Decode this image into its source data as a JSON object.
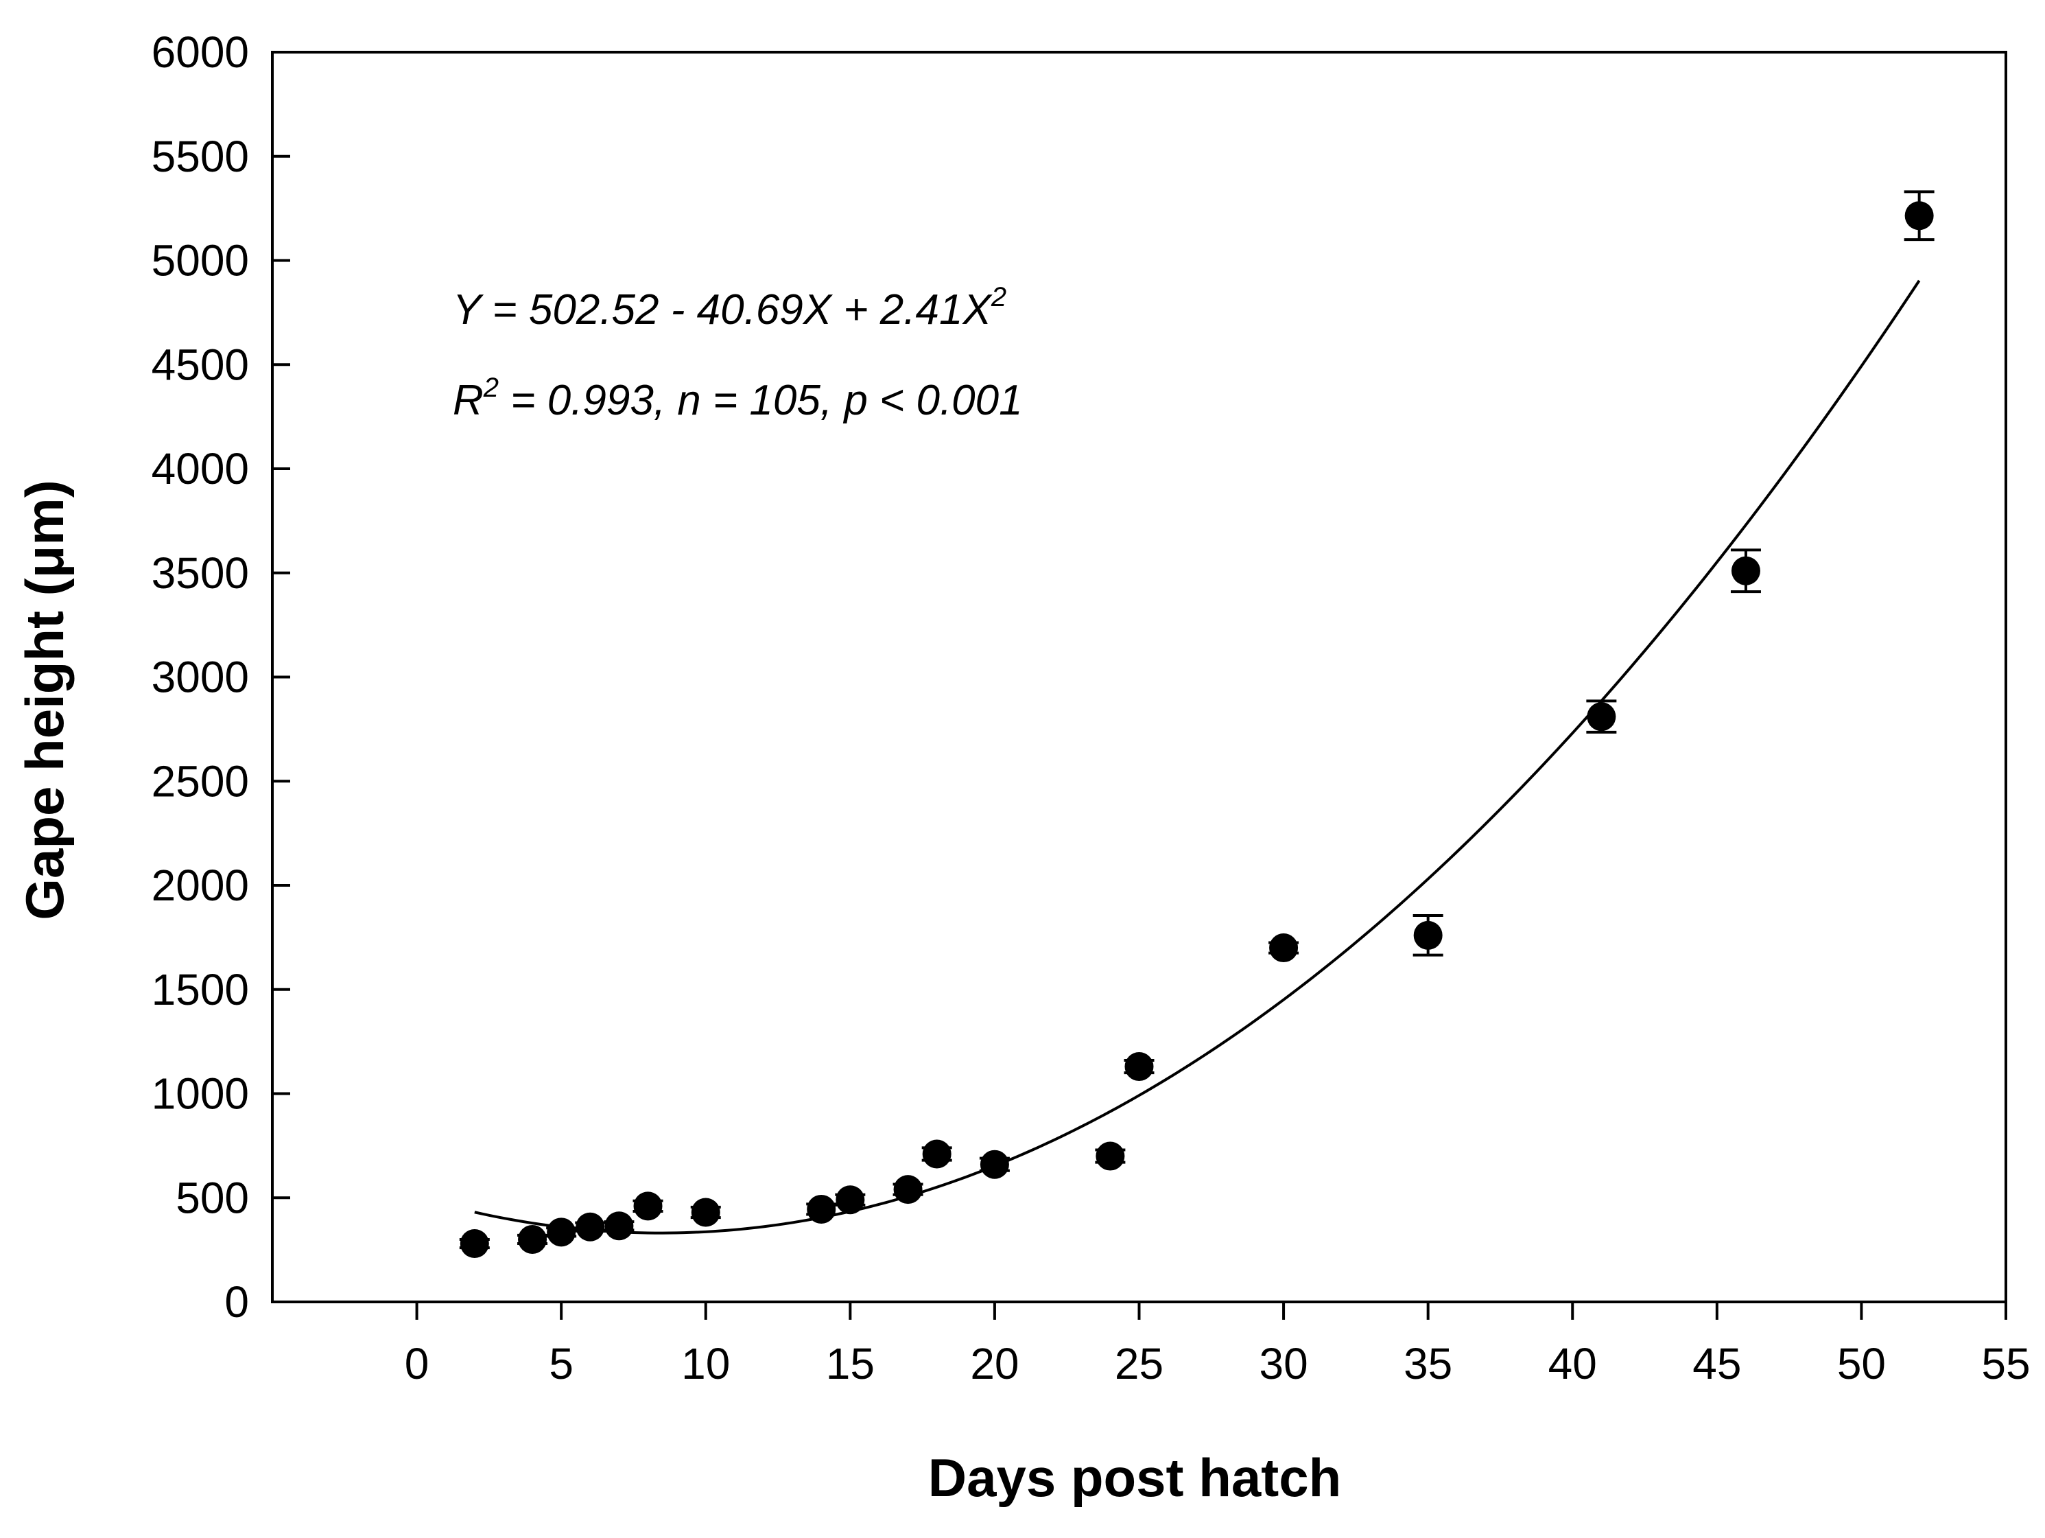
{
  "chart_data": {
    "type": "scatter",
    "title": "",
    "xlabel": "Days post hatch",
    "ylabel": "Gape height (μm)",
    "xlim": [
      -5,
      55
    ],
    "ylim": [
      0,
      6000
    ],
    "x_ticks": [
      0,
      5,
      10,
      15,
      20,
      25,
      30,
      35,
      40,
      45,
      50,
      55
    ],
    "x_tick_labels": [
      "0",
      "5",
      "10",
      "15",
      "20",
      "25",
      "30",
      "35",
      "40",
      "45",
      "50",
      "55"
    ],
    "y_ticks": [
      0,
      500,
      1000,
      1500,
      2000,
      2500,
      3000,
      3500,
      4000,
      4500,
      5000,
      5500,
      6000
    ],
    "y_tick_labels": [
      "0",
      "500",
      "1000",
      "1500",
      "2000",
      "2500",
      "3000",
      "3500",
      "4000",
      "4500",
      "5000",
      "5500",
      "6000"
    ],
    "grid": false,
    "legend": "none",
    "series": [
      {
        "name": "Gape height",
        "x": [
          2,
          4,
          5,
          6,
          7,
          8,
          10,
          14,
          15,
          17,
          18,
          20,
          24,
          25,
          30,
          35,
          41,
          46,
          52
        ],
        "y": [
          280,
          300,
          335,
          360,
          365,
          460,
          430,
          445,
          490,
          540,
          710,
          660,
          700,
          1130,
          1700,
          1760,
          2810,
          3510,
          5215
        ],
        "error": [
          20,
          20,
          20,
          20,
          20,
          25,
          25,
          25,
          25,
          25,
          30,
          30,
          30,
          30,
          25,
          95,
          75,
          100,
          115
        ]
      }
    ],
    "fit": {
      "type": "quadratic",
      "intercept": 502.52,
      "linear": -40.69,
      "quadratic": 2.41,
      "x_range": [
        2,
        52
      ]
    },
    "annotations": {
      "equation": {
        "main": "Y = 502.52 - 40.69X + 2.41X",
        "sup": "2"
      },
      "stats": {
        "prefix": "R",
        "sup": "2",
        "main": " = 0.993, n = 105, p < 0.001"
      }
    }
  }
}
